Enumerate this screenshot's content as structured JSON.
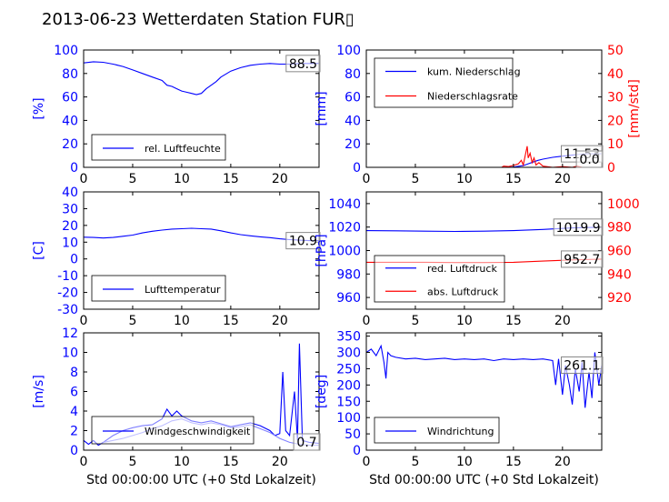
{
  "title": "2013-06-23 Wetterdaten Station FUR▯",
  "shared_xlabel": "Std 00:00:00 UTC (+0 Std Lokalzeit)",
  "colors": {
    "primary": "#0000ff",
    "secondary": "#ff0000",
    "gust": "#8080ff"
  },
  "chart_data": [
    {
      "type": "line",
      "ylabel": "[%]",
      "xlim": [
        0,
        24
      ],
      "ylim": [
        0,
        100
      ],
      "xticks": [
        0,
        5,
        10,
        15,
        20
      ],
      "yticks": [
        0,
        20,
        40,
        60,
        80,
        100
      ],
      "value_label": "88.5",
      "legend": {
        "position": "lower-left"
      },
      "series": [
        {
          "name": "rel. Luftfeuchte",
          "color": "#0000ff",
          "points": [
            [
              0,
              89
            ],
            [
              1,
              90
            ],
            [
              2,
              89.5
            ],
            [
              3,
              88
            ],
            [
              4,
              86
            ],
            [
              5,
              83
            ],
            [
              6,
              80
            ],
            [
              7,
              77
            ],
            [
              8,
              74
            ],
            [
              8.5,
              70
            ],
            [
              9,
              69
            ],
            [
              9.5,
              67
            ],
            [
              10,
              65
            ],
            [
              10.5,
              64
            ],
            [
              11,
              63
            ],
            [
              11.5,
              62
            ],
            [
              12,
              63
            ],
            [
              12.5,
              67
            ],
            [
              13,
              70
            ],
            [
              13.5,
              73
            ],
            [
              14,
              77
            ],
            [
              15,
              82
            ],
            [
              16,
              85
            ],
            [
              17,
              87
            ],
            [
              18,
              88
            ],
            [
              19,
              88.5
            ],
            [
              20,
              88
            ],
            [
              21,
              88
            ],
            [
              22,
              88.5
            ],
            [
              23,
              88.5
            ],
            [
              24,
              88.5
            ]
          ]
        }
      ]
    },
    {
      "type": "line",
      "ylabel": "[mm]",
      "ylabel_right": "[mm/std]",
      "xlim": [
        0,
        24
      ],
      "ylim": [
        0,
        100
      ],
      "ylim_right": [
        0,
        50
      ],
      "xticks": [
        0,
        5,
        10,
        15,
        20
      ],
      "yticks": [
        0,
        20,
        40,
        60,
        80,
        100
      ],
      "yticks_right": [
        0,
        10,
        20,
        30,
        40,
        50
      ],
      "value_label": "11.53",
      "value_label_right": "0.0",
      "legend": {
        "position": "upper-left"
      },
      "series": [
        {
          "name": "kum. Niederschlag",
          "color": "#0000ff",
          "axis": "left",
          "points": [
            [
              0,
              0
            ],
            [
              14,
              0
            ],
            [
              15,
              0.2
            ],
            [
              16,
              1.5
            ],
            [
              16.5,
              3
            ],
            [
              17,
              4.5
            ],
            [
              17.5,
              6
            ],
            [
              18,
              7
            ],
            [
              19,
              8.5
            ],
            [
              20,
              9.5
            ],
            [
              21,
              10.5
            ],
            [
              22,
              11.3
            ],
            [
              23,
              11.53
            ],
            [
              24,
              11.53
            ]
          ]
        },
        {
          "name": "Niederschlagsrate",
          "color": "#ff0000",
          "axis": "right",
          "points": [
            [
              0,
              0
            ],
            [
              13.8,
              0
            ],
            [
              14,
              0.5
            ],
            [
              14.5,
              0.3
            ],
            [
              15,
              0.8
            ],
            [
              15.5,
              1.5
            ],
            [
              15.8,
              3
            ],
            [
              16,
              1
            ],
            [
              16.2,
              5
            ],
            [
              16.4,
              9
            ],
            [
              16.5,
              4
            ],
            [
              16.7,
              6
            ],
            [
              16.9,
              2
            ],
            [
              17.1,
              4
            ],
            [
              17.3,
              1
            ],
            [
              17.6,
              2
            ],
            [
              18,
              0.5
            ],
            [
              19,
              0
            ],
            [
              20,
              0.3
            ],
            [
              21,
              0
            ],
            [
              21.5,
              0.5
            ],
            [
              22,
              0
            ],
            [
              24,
              0
            ]
          ]
        }
      ]
    },
    {
      "type": "line",
      "ylabel": "[C]",
      "xlim": [
        0,
        24
      ],
      "ylim": [
        -30,
        40
      ],
      "xticks": [
        0,
        5,
        10,
        15,
        20
      ],
      "yticks": [
        -30,
        -20,
        -10,
        0,
        10,
        20,
        30,
        40
      ],
      "value_label": "10.9",
      "legend": {
        "position": "lower-left"
      },
      "series": [
        {
          "name": "Lufttemperatur",
          "color": "#0000ff",
          "points": [
            [
              0,
              13
            ],
            [
              1,
              12.8
            ],
            [
              2,
              12.5
            ],
            [
              3,
              12.8
            ],
            [
              4,
              13.5
            ],
            [
              5,
              14.2
            ],
            [
              6,
              15.5
            ],
            [
              7,
              16.5
            ],
            [
              8,
              17.2
            ],
            [
              9,
              17.8
            ],
            [
              10,
              18
            ],
            [
              11,
              18.3
            ],
            [
              12,
              18
            ],
            [
              13,
              17.8
            ],
            [
              14,
              16.8
            ],
            [
              15,
              15.5
            ],
            [
              16,
              14.5
            ],
            [
              17,
              13.8
            ],
            [
              18,
              13.2
            ],
            [
              19,
              12.7
            ],
            [
              20,
              12
            ],
            [
              21,
              11.5
            ],
            [
              22,
              11.2
            ],
            [
              23,
              10.9
            ],
            [
              24,
              10.9
            ]
          ]
        }
      ]
    },
    {
      "type": "line",
      "ylabel": "[hPa]",
      "xlim": [
        0,
        24
      ],
      "ylim": [
        950,
        1050
      ],
      "ylim_right": [
        910,
        1010
      ],
      "xticks": [
        0,
        5,
        10,
        15,
        20
      ],
      "yticks": [
        960,
        980,
        1000,
        1020,
        1040
      ],
      "yticks_right": [
        920,
        940,
        960,
        980,
        1000
      ],
      "value_label": "1019.9",
      "value_label_right": "952.7",
      "legend": {
        "position": "lower-left"
      },
      "series": [
        {
          "name": "red. Luftdruck",
          "color": "#0000ff",
          "axis": "left",
          "points": [
            [
              0,
              1017
            ],
            [
              3,
              1016.8
            ],
            [
              6,
              1016.5
            ],
            [
              9,
              1016.3
            ],
            [
              12,
              1016.5
            ],
            [
              15,
              1017
            ],
            [
              18,
              1018
            ],
            [
              21,
              1019.3
            ],
            [
              24,
              1019.9
            ]
          ]
        },
        {
          "name": "abs. Luftdruck",
          "color": "#ff0000",
          "axis": "right",
          "points": [
            [
              0,
              950
            ],
            [
              3,
              950
            ],
            [
              6,
              950
            ],
            [
              9,
              949.8
            ],
            [
              12,
              949.8
            ],
            [
              15,
              950
            ],
            [
              18,
              951
            ],
            [
              21,
              952
            ],
            [
              24,
              952.7
            ]
          ]
        }
      ]
    },
    {
      "type": "line",
      "ylabel": "[m/s]",
      "xlabel": "Std 00:00:00 UTC (+0 Std Lokalzeit)",
      "xlim": [
        0,
        24
      ],
      "ylim": [
        0,
        12
      ],
      "xticks": [
        0,
        5,
        10,
        15,
        20
      ],
      "yticks": [
        0,
        2,
        4,
        6,
        8,
        10,
        12
      ],
      "value_label": "0.7",
      "legend": {
        "position": "lower-left"
      },
      "series": [
        {
          "name": "Windgeschwindigkeit",
          "color": "#0000ff",
          "points": [
            [
              0,
              1
            ],
            [
              0.5,
              0.6
            ],
            [
              1,
              1
            ],
            [
              1.5,
              0.5
            ],
            [
              2,
              0.8
            ],
            [
              3,
              1.5
            ],
            [
              4,
              2
            ],
            [
              5,
              2.3
            ],
            [
              6,
              2.5
            ],
            [
              7,
              2.6
            ],
            [
              8,
              3.2
            ],
            [
              8.5,
              4.2
            ],
            [
              9,
              3.5
            ],
            [
              9.5,
              4
            ],
            [
              10,
              3.5
            ],
            [
              11,
              3
            ],
            [
              12,
              2.8
            ],
            [
              13,
              3
            ],
            [
              14,
              2.7
            ],
            [
              15,
              2.4
            ],
            [
              16,
              2.6
            ],
            [
              17,
              2.8
            ],
            [
              18,
              2.5
            ],
            [
              19,
              2
            ],
            [
              19.5,
              1.5
            ],
            [
              20,
              1.7
            ],
            [
              20.3,
              8
            ],
            [
              20.6,
              2
            ],
            [
              21,
              1.5
            ],
            [
              21.5,
              6
            ],
            [
              21.8,
              1
            ],
            [
              22,
              10.9
            ],
            [
              22.3,
              1
            ],
            [
              23,
              0.8
            ],
            [
              24,
              0.7
            ]
          ]
        },
        {
          "name": "",
          "color": "#8080ff",
          "points": [
            [
              2,
              0.8
            ],
            [
              3,
              1
            ],
            [
              4,
              1.2
            ],
            [
              5,
              1.5
            ],
            [
              6,
              1.8
            ],
            [
              7,
              2.2
            ],
            [
              8,
              2.5
            ],
            [
              9,
              3
            ],
            [
              10,
              3.2
            ],
            [
              11,
              2.8
            ],
            [
              12,
              2.6
            ],
            [
              13,
              2.8
            ],
            [
              14,
              2.6
            ],
            [
              15,
              2.3
            ],
            [
              16,
              2.4
            ],
            [
              17,
              2.6
            ],
            [
              18,
              2.2
            ],
            [
              19,
              1.8
            ],
            [
              20,
              1.2
            ],
            [
              21,
              0.8
            ],
            [
              22,
              0.6
            ],
            [
              23,
              0.5
            ],
            [
              24,
              0.5
            ]
          ]
        }
      ]
    },
    {
      "type": "line",
      "ylabel": "[deg]",
      "xlabel": "Std 00:00:00 UTC (+0 Std Lokalzeit)",
      "xlim": [
        0,
        24
      ],
      "ylim": [
        0,
        360
      ],
      "xticks": [
        0,
        5,
        10,
        15,
        20
      ],
      "yticks": [
        0,
        50,
        100,
        150,
        200,
        250,
        300,
        350
      ],
      "value_label": "261.1",
      "legend": {
        "position": "lower-left"
      },
      "series": [
        {
          "name": "Windrichtung",
          "color": "#0000ff",
          "points": [
            [
              0,
              300
            ],
            [
              0.5,
              310
            ],
            [
              1,
              290
            ],
            [
              1.5,
              320
            ],
            [
              1.8,
              270
            ],
            [
              2,
              220
            ],
            [
              2.2,
              300
            ],
            [
              2.5,
              290
            ],
            [
              3,
              285
            ],
            [
              4,
              280
            ],
            [
              5,
              282
            ],
            [
              6,
              278
            ],
            [
              7,
              280
            ],
            [
              8,
              282
            ],
            [
              9,
              278
            ],
            [
              10,
              280
            ],
            [
              11,
              278
            ],
            [
              12,
              280
            ],
            [
              13,
              275
            ],
            [
              14,
              280
            ],
            [
              15,
              278
            ],
            [
              16,
              280
            ],
            [
              17,
              278
            ],
            [
              18,
              280
            ],
            [
              19,
              275
            ],
            [
              19.3,
              200
            ],
            [
              19.6,
              280
            ],
            [
              20,
              170
            ],
            [
              20.3,
              260
            ],
            [
              20.7,
              200
            ],
            [
              21,
              140
            ],
            [
              21.3,
              250
            ],
            [
              21.7,
              180
            ],
            [
              22,
              270
            ],
            [
              22.3,
              130
            ],
            [
              22.7,
              240
            ],
            [
              23,
              160
            ],
            [
              23.3,
              300
            ],
            [
              23.7,
              200
            ],
            [
              24,
              261
            ]
          ]
        }
      ]
    }
  ]
}
